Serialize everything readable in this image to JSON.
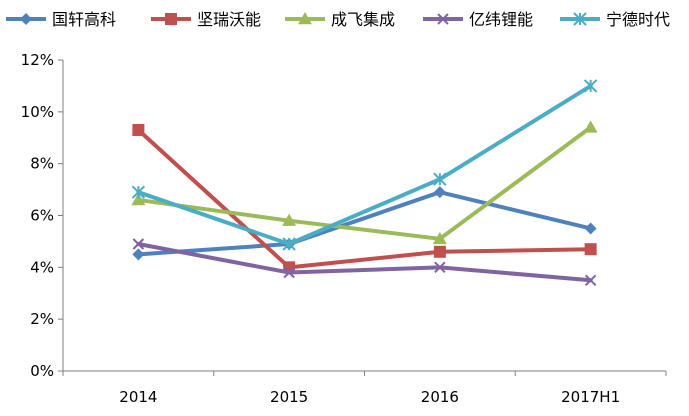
{
  "chart_data": {
    "type": "line",
    "title": "",
    "xlabel": "",
    "ylabel": "",
    "categories": [
      "2014",
      "2015",
      "2016",
      "2017H1"
    ],
    "ylim": [
      0,
      12
    ],
    "yticks": [
      "0%",
      "2%",
      "4%",
      "6%",
      "8%",
      "10%",
      "12%"
    ],
    "y_unit": "%",
    "grid": false,
    "legend": "top",
    "series": [
      {
        "name": "国轩高科",
        "color": "#4F81BD",
        "marker": "diamond",
        "values": [
          4.5,
          4.9,
          6.9,
          5.5
        ]
      },
      {
        "name": "坚瑞沃能",
        "color": "#C0504D",
        "marker": "square",
        "values": [
          9.3,
          4.0,
          4.6,
          4.7
        ]
      },
      {
        "name": "成飞集成",
        "color": "#9BBB59",
        "marker": "triangle",
        "values": [
          6.6,
          5.8,
          5.1,
          9.4
        ]
      },
      {
        "name": "亿纬锂能",
        "color": "#8064A2",
        "marker": "x",
        "values": [
          4.9,
          3.8,
          4.0,
          3.5
        ]
      },
      {
        "name": "宁德时代",
        "color": "#4BACC6",
        "marker": "star",
        "values": [
          6.9,
          4.9,
          7.4,
          11.0
        ]
      }
    ]
  }
}
